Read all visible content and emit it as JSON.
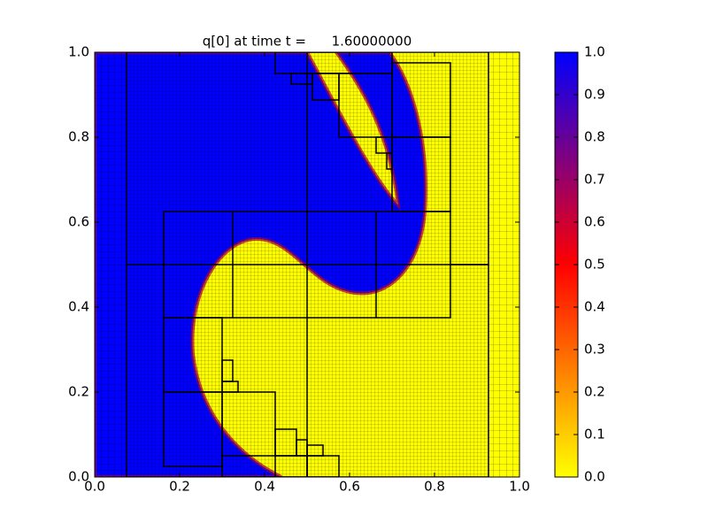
{
  "chart_data": {
    "type": "heatmap",
    "title": "q[0] at time t =      1.60000000",
    "xlim": [
      0,
      1
    ],
    "ylim": [
      0,
      1
    ],
    "xticks": [
      {
        "value": 0,
        "label": "0.0"
      },
      {
        "value": 0.2,
        "label": "0.2"
      },
      {
        "value": 0.4,
        "label": "0.4"
      },
      {
        "value": 0.6,
        "label": "0.6"
      },
      {
        "value": 0.8,
        "label": "0.8"
      },
      {
        "value": 1,
        "label": "1.0"
      }
    ],
    "yticks": [
      {
        "value": 0,
        "label": "0.0"
      },
      {
        "value": 0.2,
        "label": "0.2"
      },
      {
        "value": 0.4,
        "label": "0.4"
      },
      {
        "value": 0.6,
        "label": "0.6"
      },
      {
        "value": 0.8,
        "label": "0.8"
      },
      {
        "value": 1,
        "label": "1.0"
      }
    ],
    "colorbar": {
      "lim": [
        0,
        1
      ],
      "ticks": [
        {
          "value": 0,
          "label": "0.0"
        },
        {
          "value": 0.1,
          "label": "0.1"
        },
        {
          "value": 0.2,
          "label": "0.2"
        },
        {
          "value": 0.3,
          "label": "0.3"
        },
        {
          "value": 0.4,
          "label": "0.4"
        },
        {
          "value": 0.5,
          "label": "0.5"
        },
        {
          "value": 0.6,
          "label": "0.6"
        },
        {
          "value": 0.7,
          "label": "0.7"
        },
        {
          "value": 0.8,
          "label": "0.8"
        },
        {
          "value": 0.9,
          "label": "0.9"
        },
        {
          "value": 1,
          "label": "1.0"
        }
      ],
      "colors": [
        {
          "value": 0,
          "color": "#ffff00"
        },
        {
          "value": 0.5,
          "color": "#ff0000"
        },
        {
          "value": 1,
          "color": "#0000ff"
        }
      ]
    }
  }
}
